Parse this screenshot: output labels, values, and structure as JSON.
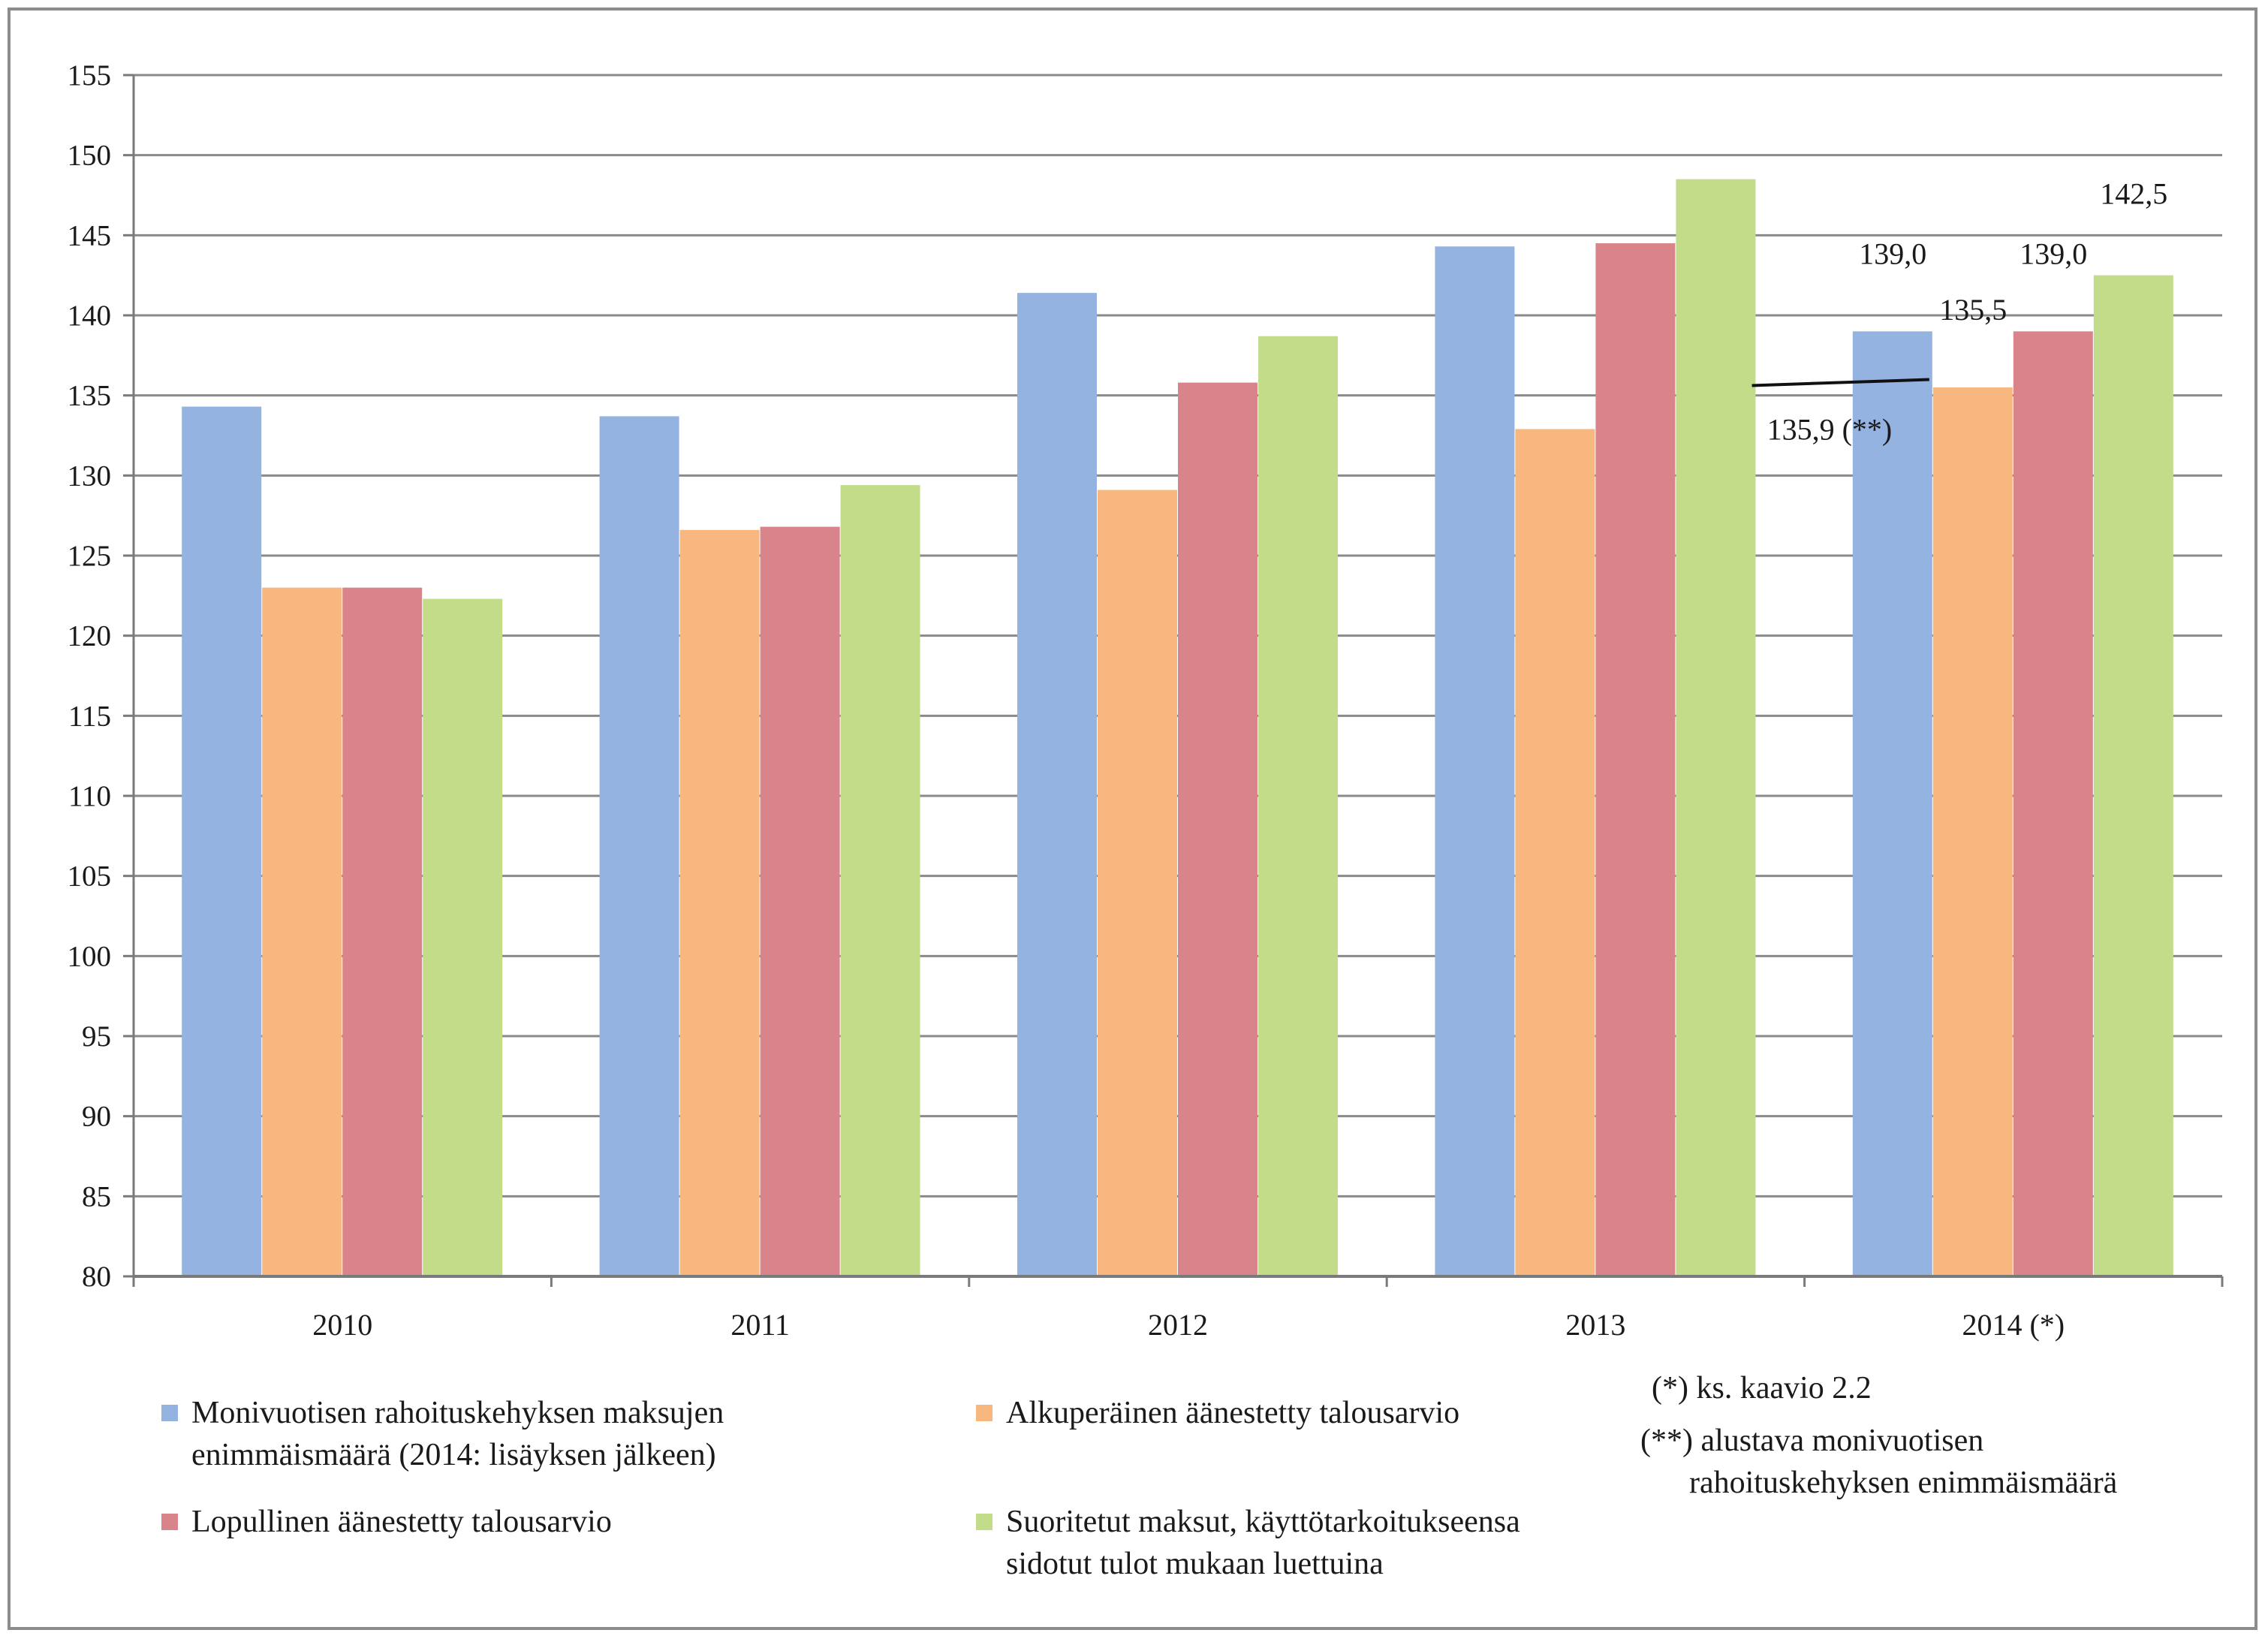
{
  "chart_data": {
    "type": "bar",
    "categories": [
      "2010",
      "2011",
      "2012",
      "2013",
      "2014 (*)"
    ],
    "ylim": [
      80,
      155
    ],
    "yticks": [
      "80",
      "85",
      "90",
      "95",
      "100",
      "105",
      "110",
      "115",
      "120",
      "125",
      "130",
      "135",
      "140",
      "145",
      "150",
      "155"
    ],
    "grid": true,
    "legend_position": "bottom",
    "series": [
      {
        "name": "Monivuotisen rahoituskehyksen maksujen enimmäismäärä (2014: lisäyksen jälkeen)",
        "name_lines": [
          "Monivuotisen rahoituskehyksen maksujen",
          "enimmäismäärä (2014: lisäyksen jälkeen)"
        ],
        "color": "#95b3e0",
        "values": [
          134.3,
          133.7,
          141.4,
          144.3,
          139.0
        ]
      },
      {
        "name": "Alkuperäinen äänestetty talousarvio",
        "name_lines": [
          "Alkuperäinen äänestetty talousarvio"
        ],
        "color": "#f7b77f",
        "values": [
          123.0,
          126.6,
          129.1,
          132.9,
          135.5
        ]
      },
      {
        "name": "Lopullinen äänestetty talousarvio",
        "name_lines": [
          "Lopullinen äänestetty talousarvio"
        ],
        "color": "#d9848a",
        "values": [
          123.0,
          126.8,
          135.8,
          144.5,
          139.0
        ]
      },
      {
        "name": "Suoritetut maksut, käyttötarkoitukseensa sidotut tulot mukaan luettuina",
        "name_lines": [
          "Suoritetut maksut, käyttötarkoitukseensa",
          "sidotut tulot mukaan luettuina"
        ],
        "color": "#c2dc8a",
        "values": [
          122.3,
          129.4,
          138.7,
          148.5,
          142.5
        ]
      }
    ],
    "data_labels": [
      {
        "series": 0,
        "category": 4,
        "text": "139,0"
      },
      {
        "series": 1,
        "category": 4,
        "text": "135,5"
      },
      {
        "series": 2,
        "category": 4,
        "text": "139,0"
      },
      {
        "series": 3,
        "category": 4,
        "text": "142,5"
      }
    ],
    "reference_line": {
      "value": 135.9,
      "label": "135,9 (**)"
    },
    "notes": [
      "(*) ks. kaavio 2.2",
      "(**) alustava monivuotisen",
      "rahoituskehyksen enimmäismäärä"
    ]
  }
}
